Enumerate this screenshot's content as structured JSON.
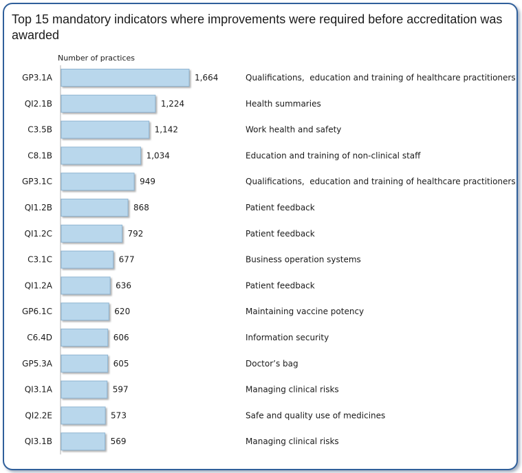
{
  "chart_data": {
    "type": "bar",
    "orientation": "horizontal",
    "title": "Top 15 mandatory indicators where improvements were required before accreditation was awarded",
    "value_axis_label": "Number of practices",
    "categories": [
      "GP3.1A",
      "QI2.1B",
      "C3.5B",
      "C8.1B",
      "GP3.1C",
      "QI1.2B",
      "QI1.2C",
      "C3.1C",
      "QI1.2A",
      "GP6.1C",
      "C6.4D",
      "GP5.3A",
      "QI3.1A",
      "QI2.2E",
      "QI3.1B"
    ],
    "values": [
      1664,
      1224,
      1142,
      1034,
      949,
      868,
      792,
      677,
      636,
      620,
      606,
      605,
      597,
      573,
      569
    ],
    "value_labels": [
      "1,664",
      "1,224",
      "1,142",
      "1,034",
      "949",
      "868",
      "792",
      "677",
      "636",
      "620",
      "606",
      "605",
      "597",
      "573",
      "569"
    ],
    "descriptions": [
      "Qualifications,  education and training of healthcare practitioners",
      "Health summaries",
      "Work health and safety",
      "Education and training of non-clinical staff",
      "Qualifications,  education and training of healthcare practitioners",
      "Patient feedback",
      "Patient feedback",
      "Business operation systems",
      "Patient feedback",
      "Maintaining vaccine potency",
      "Information security",
      "Doctor’s bag",
      "Managing clinical risks",
      "Safe and quality use of medicines",
      "Managing clinical risks"
    ],
    "xlim": [
      0,
      1664
    ],
    "grid": false,
    "legend": "none",
    "colors": {
      "bar_fill": "#b9d7ec",
      "bar_edge": "#8fb5d2",
      "frame": "#2f5f9a"
    }
  }
}
